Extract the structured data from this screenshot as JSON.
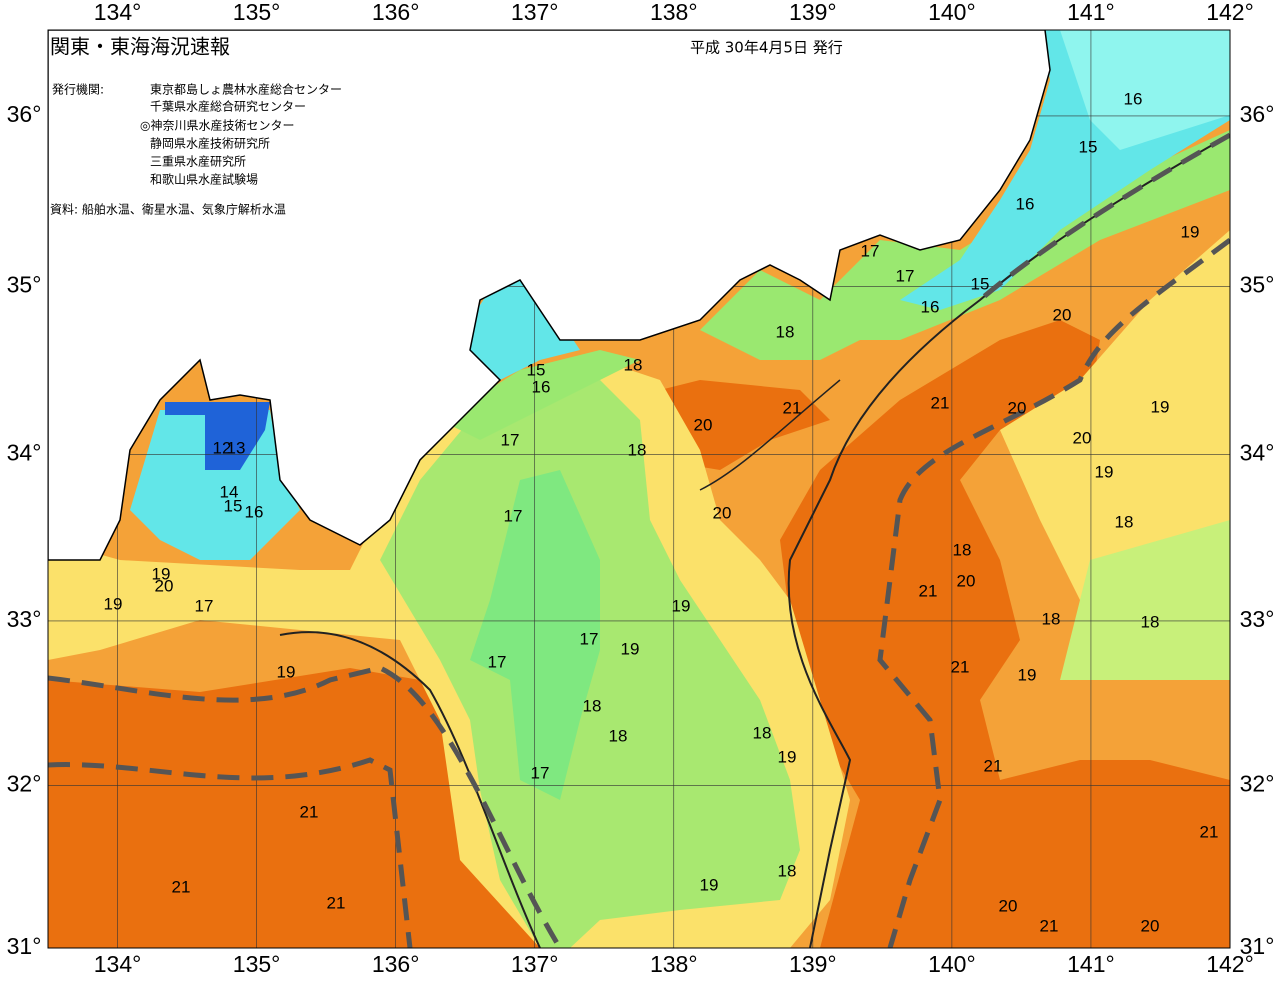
{
  "header": {
    "title": "関東・東海海況速報",
    "date": "平成 30年4月5日 発行"
  },
  "info": {
    "issuer_label": "発行機関:",
    "issuers": [
      "東京都島しょ農林水産総合センター",
      "千葉県水産総合研究センター",
      "◎神奈川県水産技術センター",
      "静岡県水産技術研究所",
      "三重県水産研究所",
      "和歌山県水産試験場"
    ],
    "source": "資料: 船舶水温、衛星水温、気象庁解析水温"
  },
  "map": {
    "xlim": [
      133.5,
      142
    ],
    "ylim": [
      31,
      36.5
    ],
    "grid": true,
    "xticks": [
      {
        "value": 134,
        "label": "134°"
      },
      {
        "value": 135,
        "label": "135°"
      },
      {
        "value": 136,
        "label": "136°"
      },
      {
        "value": 137,
        "label": "137°"
      },
      {
        "value": 138,
        "label": "138°"
      },
      {
        "value": 139,
        "label": "139°"
      },
      {
        "value": 140,
        "label": "140°"
      },
      {
        "value": 141,
        "label": "141°"
      },
      {
        "value": 142,
        "label": "142°"
      }
    ],
    "yticks": [
      {
        "value": 31,
        "label": "31°"
      },
      {
        "value": 32,
        "label": "32°"
      },
      {
        "value": 33,
        "label": "33°"
      },
      {
        "value": 34,
        "label": "34°"
      },
      {
        "value": 35,
        "label": "35°"
      },
      {
        "value": 36,
        "label": "36°"
      }
    ],
    "contour_labels": [
      16,
      15,
      16,
      19,
      17,
      17,
      15,
      16,
      20,
      18,
      18,
      15,
      16,
      21,
      21,
      20,
      19,
      20,
      17,
      18,
      20,
      12,
      13,
      19,
      14,
      15,
      16,
      17,
      20,
      18,
      19,
      18,
      20,
      21,
      20,
      19,
      17,
      19,
      18,
      18,
      17,
      19,
      17,
      21,
      19,
      19,
      18,
      18,
      18,
      19,
      21,
      17,
      21,
      21,
      18,
      19,
      21,
      21,
      20,
      21,
      20
    ]
  }
}
